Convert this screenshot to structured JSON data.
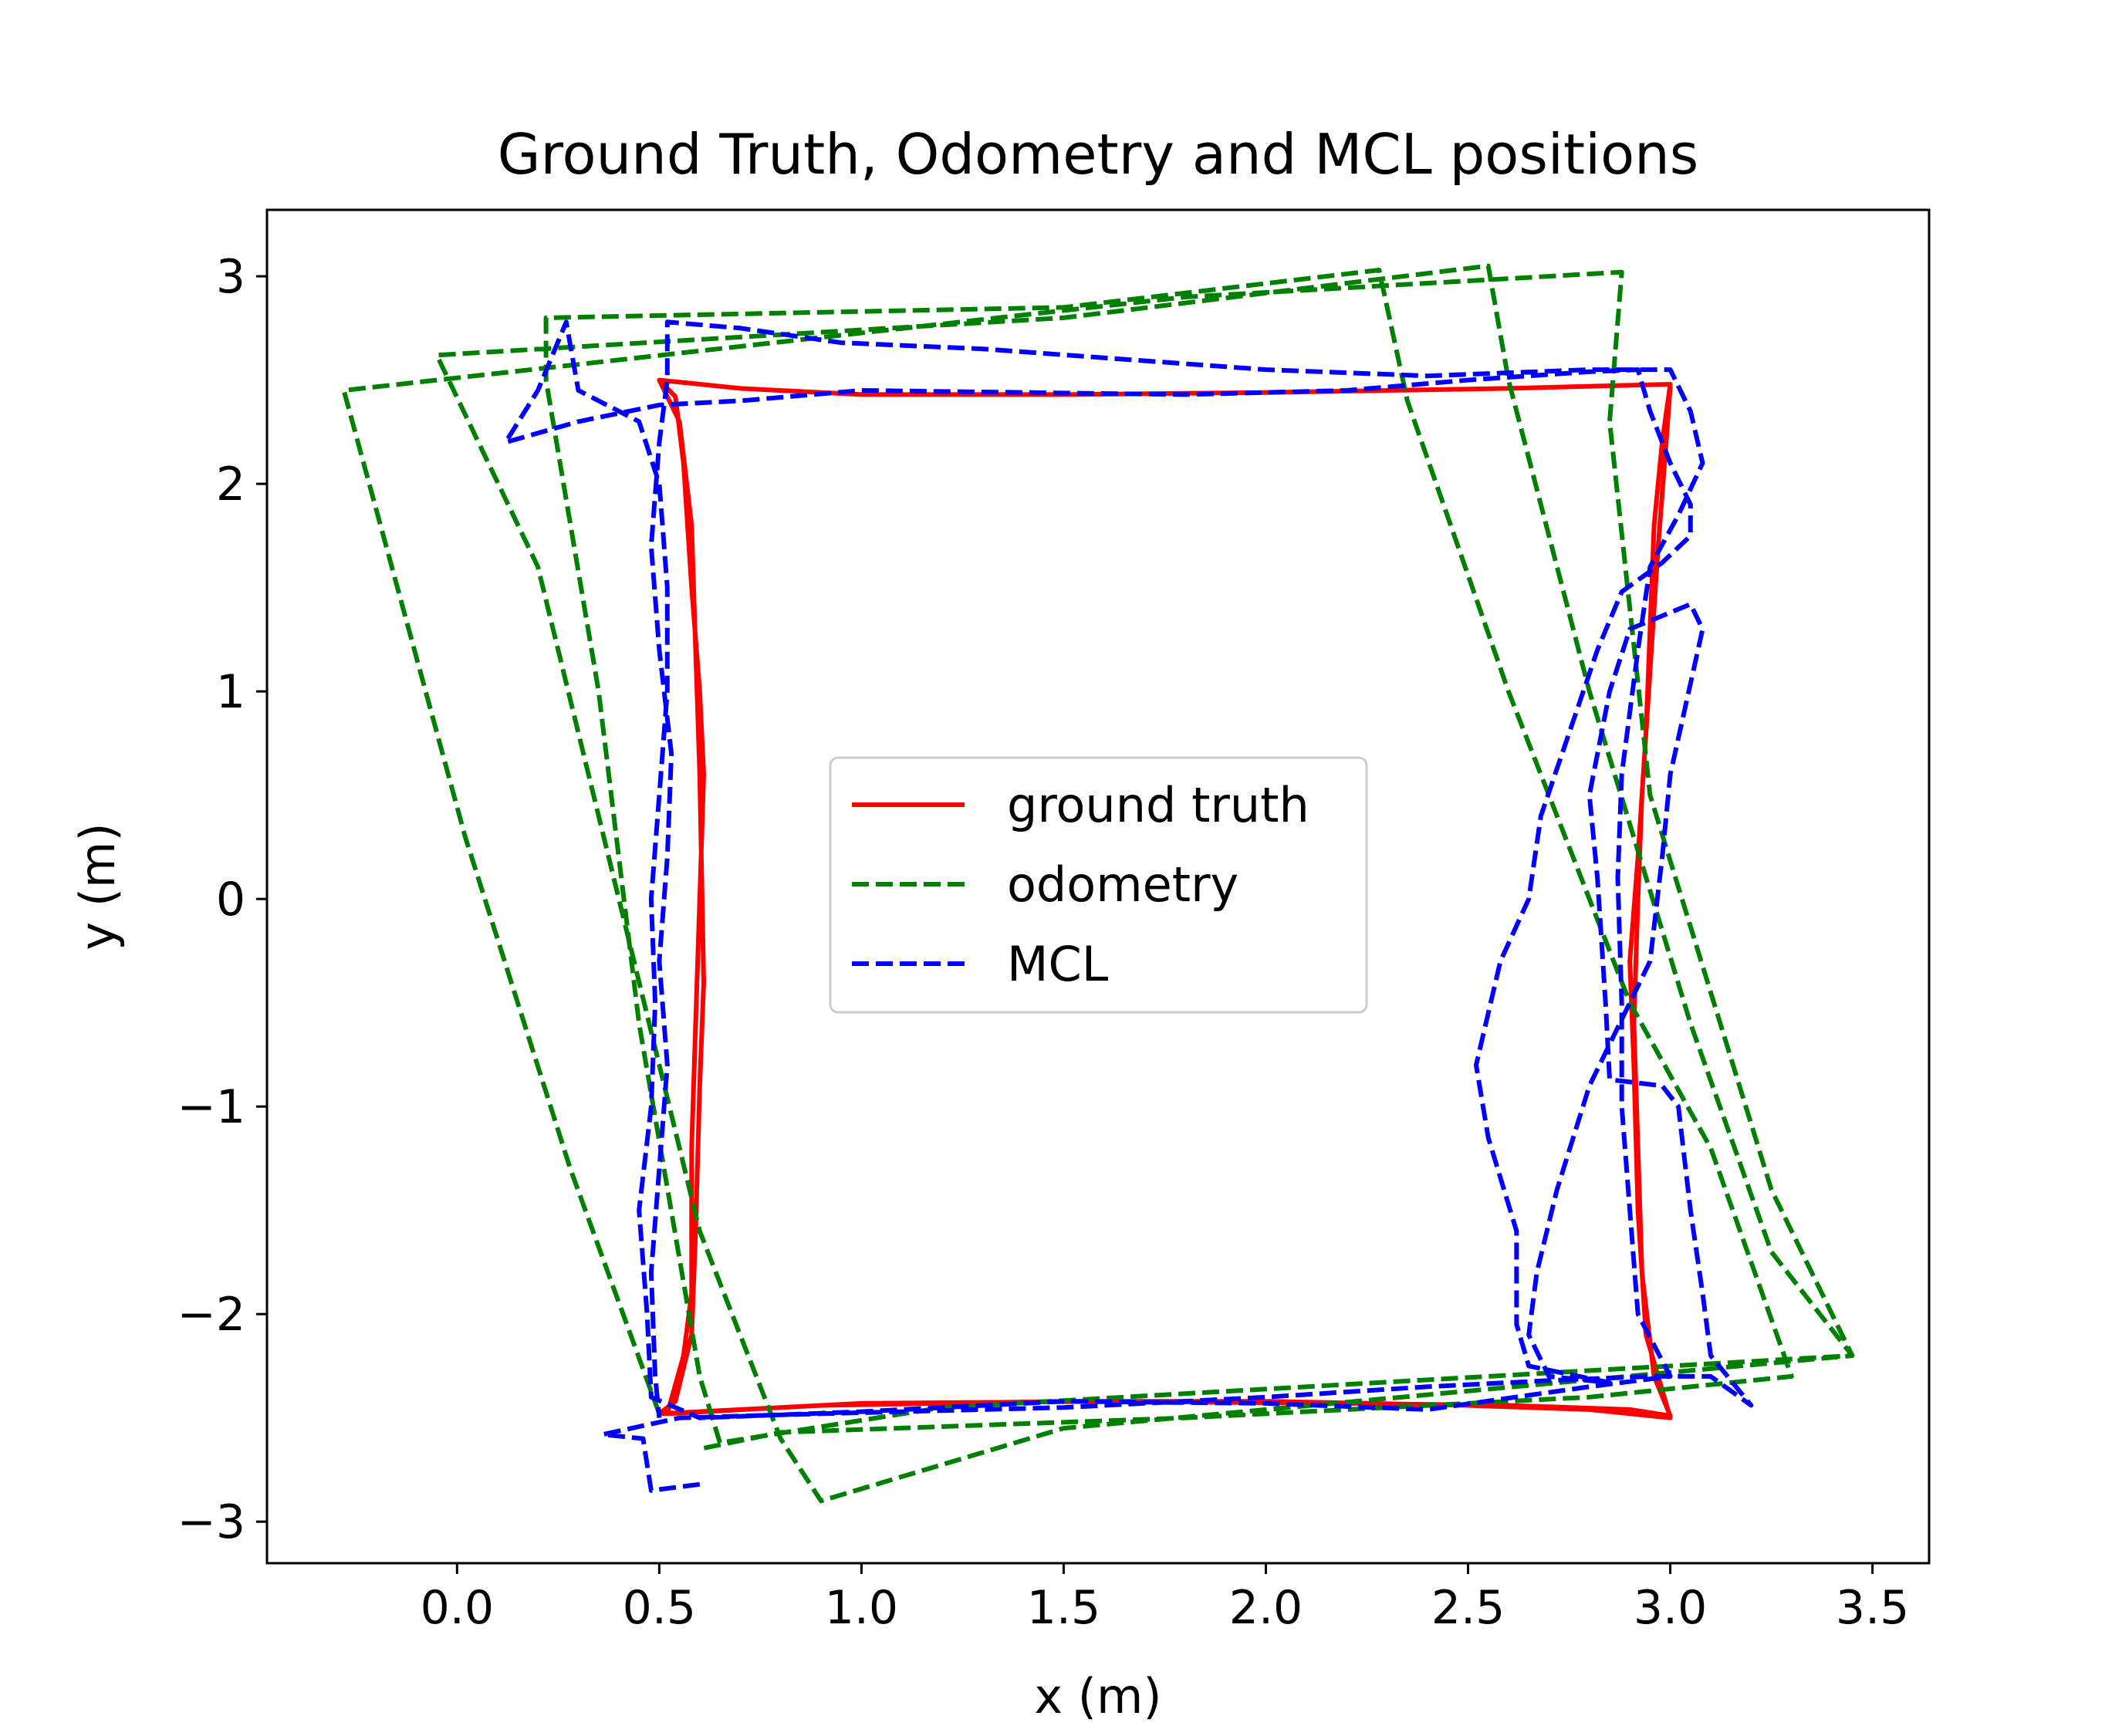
{
  "chart_data": {
    "type": "line",
    "title": "Ground Truth, Odometry and MCL positions",
    "xlabel": "x (m)",
    "ylabel": "y (m)",
    "xlim": [
      -0.47,
      3.64
    ],
    "ylim": [
      -3.2,
      3.32
    ],
    "xticks": [
      0.0,
      0.5,
      1.0,
      1.5,
      2.0,
      2.5,
      3.0,
      3.5
    ],
    "xtick_labels": [
      "0.0",
      "0.5",
      "1.0",
      "1.5",
      "2.0",
      "2.5",
      "3.0",
      "3.5"
    ],
    "yticks": [
      -3,
      -2,
      -1,
      0,
      1,
      2,
      3
    ],
    "ytick_labels": [
      "−3",
      "−2",
      "−1",
      "0",
      "1",
      "2",
      "3"
    ],
    "grid": false,
    "legend_position": "center",
    "series": [
      {
        "name": "ground truth",
        "color": "#ff0000",
        "dash": "solid",
        "points": [
          [
            0.5,
            2.5
          ],
          [
            0.54,
            2.42
          ],
          [
            0.56,
            2.1
          ],
          [
            0.58,
            1.5
          ],
          [
            0.6,
            1.0
          ],
          [
            0.61,
            0.6
          ],
          [
            0.6,
            0.0
          ],
          [
            0.59,
            -0.6
          ],
          [
            0.58,
            -1.2
          ],
          [
            0.58,
            -1.9
          ],
          [
            0.56,
            -2.2
          ],
          [
            0.52,
            -2.48
          ],
          [
            0.9,
            -2.44
          ],
          [
            1.5,
            -2.42
          ],
          [
            2.0,
            -2.42
          ],
          [
            2.5,
            -2.44
          ],
          [
            2.8,
            -2.46
          ],
          [
            3.0,
            -2.5
          ],
          [
            2.97,
            -2.3
          ],
          [
            2.94,
            -2.1
          ],
          [
            2.92,
            -1.5
          ],
          [
            2.91,
            -0.8
          ],
          [
            2.9,
            -0.3
          ],
          [
            2.92,
            0.2
          ],
          [
            2.94,
            0.8
          ],
          [
            2.95,
            1.3
          ],
          [
            2.96,
            1.8
          ],
          [
            2.98,
            2.2
          ],
          [
            3.0,
            2.48
          ],
          [
            2.6,
            2.46
          ],
          [
            2.0,
            2.44
          ],
          [
            1.5,
            2.43
          ],
          [
            1.0,
            2.43
          ],
          [
            0.7,
            2.46
          ],
          [
            0.5,
            2.5
          ],
          [
            0.55,
            2.3
          ],
          [
            0.58,
            1.8
          ],
          [
            0.59,
            1.2
          ],
          [
            0.6,
            0.6
          ],
          [
            0.61,
            -0.4
          ],
          [
            0.6,
            -0.9
          ],
          [
            0.59,
            -1.6
          ],
          [
            0.58,
            -2.1
          ],
          [
            0.54,
            -2.42
          ],
          [
            0.5,
            -2.48
          ],
          [
            1.0,
            -2.43
          ],
          [
            1.6,
            -2.42
          ],
          [
            2.2,
            -2.43
          ],
          [
            2.6,
            -2.44
          ],
          [
            2.9,
            -2.46
          ],
          [
            3.0,
            -2.49
          ],
          [
            2.96,
            -2.3
          ],
          [
            2.93,
            -1.8
          ],
          [
            2.92,
            -1.2
          ],
          [
            2.91,
            -0.6
          ],
          [
            2.92,
            0.0
          ],
          [
            2.93,
            0.5
          ],
          [
            2.95,
            1.1
          ],
          [
            2.97,
            1.7
          ],
          [
            2.99,
            2.2
          ],
          [
            3.0,
            2.47
          ]
        ]
      },
      {
        "name": "odometry",
        "color": "#008000",
        "dash": "dashed",
        "points": [
          [
            0.5,
            -2.48
          ],
          [
            0.28,
            -1.3
          ],
          [
            0.02,
            0.3
          ],
          [
            -0.28,
            2.45
          ],
          [
            1.8,
            2.9
          ],
          [
            2.88,
            3.02
          ],
          [
            2.85,
            2.3
          ],
          [
            2.95,
            0.5
          ],
          [
            3.25,
            -1.4
          ],
          [
            3.45,
            -2.2
          ],
          [
            1.5,
            -2.55
          ],
          [
            0.9,
            -2.9
          ],
          [
            0.8,
            -2.6
          ],
          [
            0.6,
            -1.6
          ],
          [
            0.4,
            0.0
          ],
          [
            0.2,
            1.6
          ],
          [
            -0.05,
            2.62
          ],
          [
            1.5,
            2.8
          ],
          [
            2.55,
            3.05
          ],
          [
            2.6,
            2.5
          ],
          [
            2.8,
            1.0
          ],
          [
            3.05,
            -0.6
          ],
          [
            3.25,
            -1.7
          ],
          [
            3.45,
            -2.2
          ],
          [
            1.2,
            -2.45
          ],
          [
            0.65,
            -2.62
          ],
          [
            0.6,
            -2.3
          ],
          [
            0.45,
            -0.6
          ],
          [
            0.35,
            1.0
          ],
          [
            0.22,
            2.5
          ],
          [
            0.22,
            2.8
          ],
          [
            1.5,
            2.85
          ],
          [
            2.28,
            3.03
          ],
          [
            2.35,
            2.4
          ],
          [
            2.6,
            1.0
          ],
          [
            2.9,
            -0.5
          ],
          [
            3.1,
            -1.2
          ],
          [
            3.3,
            -2.3
          ],
          [
            2.8,
            -2.4
          ],
          [
            1.8,
            -2.5
          ],
          [
            0.8,
            -2.57
          ],
          [
            0.6,
            -2.65
          ]
        ]
      },
      {
        "name": "MCL",
        "color": "#0000ff",
        "dash": "dashed",
        "points": [
          [
            0.6,
            -2.82
          ],
          [
            0.48,
            -2.85
          ],
          [
            0.46,
            -2.6
          ],
          [
            0.36,
            -2.58
          ],
          [
            0.55,
            -2.5
          ],
          [
            0.9,
            -2.48
          ],
          [
            1.5,
            -2.45
          ],
          [
            2.0,
            -2.4
          ],
          [
            2.4,
            -2.35
          ],
          [
            2.7,
            -2.32
          ],
          [
            2.95,
            -2.3
          ],
          [
            3.1,
            -2.3
          ],
          [
            3.2,
            -2.44
          ],
          [
            3.1,
            -2.2
          ],
          [
            3.08,
            -1.9
          ],
          [
            3.05,
            -1.5
          ],
          [
            3.02,
            -1.0
          ],
          [
            2.98,
            -0.9
          ],
          [
            2.85,
            -0.87
          ],
          [
            2.84,
            -0.5
          ],
          [
            2.82,
            0.1
          ],
          [
            2.8,
            0.5
          ],
          [
            2.85,
            1.0
          ],
          [
            2.9,
            1.3
          ],
          [
            3.05,
            1.42
          ],
          [
            3.08,
            1.3
          ],
          [
            3.0,
            0.6
          ],
          [
            2.98,
            0.2
          ],
          [
            2.95,
            -0.3
          ],
          [
            2.8,
            -0.9
          ],
          [
            2.72,
            -1.4
          ],
          [
            2.67,
            -1.8
          ],
          [
            2.65,
            -2.1
          ],
          [
            2.7,
            -2.3
          ],
          [
            2.85,
            -2.33
          ],
          [
            2.65,
            -2.25
          ],
          [
            2.62,
            -2.05
          ],
          [
            2.62,
            -1.6
          ],
          [
            2.55,
            -1.15
          ],
          [
            2.52,
            -0.8
          ],
          [
            2.58,
            -0.3
          ],
          [
            2.65,
            0.0
          ],
          [
            2.68,
            0.4
          ],
          [
            2.75,
            0.8
          ],
          [
            2.82,
            1.2
          ],
          [
            2.88,
            1.48
          ],
          [
            2.98,
            1.62
          ],
          [
            3.05,
            1.75
          ],
          [
            3.05,
            1.9
          ],
          [
            3.0,
            2.1
          ],
          [
            2.95,
            2.35
          ],
          [
            2.92,
            2.55
          ],
          [
            2.8,
            2.54
          ],
          [
            2.5,
            2.5
          ],
          [
            2.2,
            2.45
          ],
          [
            1.8,
            2.43
          ],
          [
            1.4,
            2.44
          ],
          [
            1.0,
            2.45
          ],
          [
            0.7,
            2.4
          ],
          [
            0.5,
            2.38
          ],
          [
            0.3,
            2.3
          ],
          [
            0.12,
            2.2
          ],
          [
            0.2,
            2.45
          ],
          [
            0.27,
            2.78
          ],
          [
            0.3,
            2.45
          ],
          [
            0.45,
            2.3
          ],
          [
            0.5,
            2.0
          ],
          [
            0.52,
            1.5
          ],
          [
            0.52,
            1.0
          ],
          [
            0.5,
            0.5
          ],
          [
            0.48,
            0.0
          ],
          [
            0.49,
            -0.5
          ],
          [
            0.48,
            -1.0
          ],
          [
            0.45,
            -1.5
          ],
          [
            0.47,
            -2.0
          ],
          [
            0.48,
            -2.4
          ],
          [
            0.6,
            -2.5
          ],
          [
            1.0,
            -2.47
          ],
          [
            1.5,
            -2.42
          ],
          [
            2.0,
            -2.43
          ],
          [
            2.4,
            -2.46
          ],
          [
            2.8,
            -2.35
          ],
          [
            3.0,
            -2.3
          ],
          [
            2.92,
            -2.0
          ],
          [
            2.9,
            -1.5
          ],
          [
            2.88,
            -1.0
          ],
          [
            2.88,
            -0.5
          ],
          [
            2.87,
            0.1
          ],
          [
            2.88,
            0.6
          ],
          [
            2.92,
            1.2
          ],
          [
            2.95,
            1.6
          ],
          [
            3.02,
            1.85
          ],
          [
            3.08,
            2.1
          ],
          [
            3.05,
            2.35
          ],
          [
            3.0,
            2.55
          ],
          [
            2.8,
            2.55
          ],
          [
            2.4,
            2.52
          ],
          [
            2.0,
            2.55
          ],
          [
            1.65,
            2.6
          ],
          [
            1.3,
            2.65
          ],
          [
            0.95,
            2.68
          ],
          [
            0.7,
            2.75
          ],
          [
            0.52,
            2.78
          ],
          [
            0.52,
            2.5
          ],
          [
            0.5,
            2.2
          ],
          [
            0.48,
            1.7
          ],
          [
            0.5,
            1.2
          ],
          [
            0.53,
            0.7
          ],
          [
            0.52,
            0.2
          ],
          [
            0.5,
            -0.3
          ],
          [
            0.52,
            -0.8
          ],
          [
            0.5,
            -1.3
          ],
          [
            0.48,
            -1.8
          ],
          [
            0.49,
            -2.3
          ],
          [
            0.5,
            -2.5
          ]
        ]
      }
    ]
  }
}
